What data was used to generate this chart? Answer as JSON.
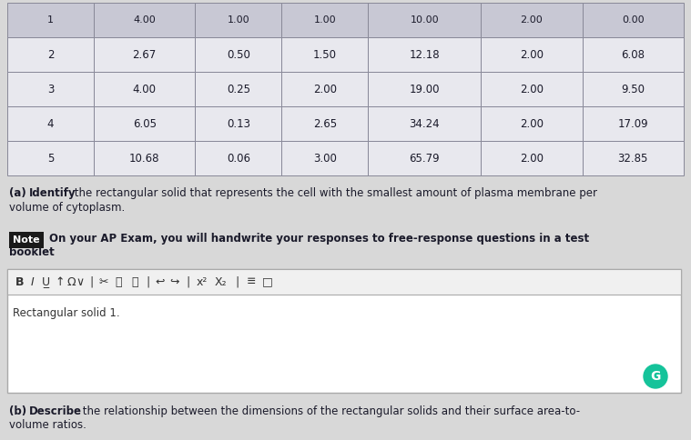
{
  "table_headers": [
    "1",
    "4.00",
    "1.00",
    "1.00",
    "10.00",
    "2.00",
    "0.00"
  ],
  "table_rows": [
    [
      "2",
      "2.67",
      "0.50",
      "1.50",
      "12.18",
      "2.00",
      "6.08"
    ],
    [
      "3",
      "4.00",
      "0.25",
      "2.00",
      "19.00",
      "2.00",
      "9.50"
    ],
    [
      "4",
      "6.05",
      "0.13",
      "2.65",
      "34.24",
      "2.00",
      "17.09"
    ],
    [
      "5",
      "10.68",
      "0.06",
      "3.00",
      "65.79",
      "2.00",
      "32.85"
    ]
  ],
  "bg_color": "#d8d8d8",
  "table_cell_bg": "#e8e8ee",
  "table_header_bg": "#c8c8d4",
  "border_color": "#888898",
  "text_color": "#1a1a2a",
  "note_bg": "#1a1a1a",
  "note_fg": "#ffffff",
  "textbox_bg": "#ffffff",
  "textbox_border": "#aaaaaa",
  "toolbar_bg": "#f0f0f0",
  "toolbar_border": "#aaaaaa",
  "grammarly_color": "#15c39a",
  "answer_text": "Rectangular solid 1.",
  "note_label": "Note",
  "note_body_line1": "On your AP Exam, you will handwrite your responses to free-response questions in a test",
  "note_body_line2": "booklet",
  "qa_prefix": "(a) ",
  "qa_bold": "Identify",
  "qa_rest": " the rectangular solid that represents the cell with the smallest amount of plasma membrane per",
  "qa_line2": "volume of cytoplasm.",
  "qb_prefix": "(b) ",
  "qb_bold": "Describe",
  "qb_rest": " the relationship between the dimensions of the rectangular solids and their surface area-to-",
  "qb_line2": "volume ratios."
}
